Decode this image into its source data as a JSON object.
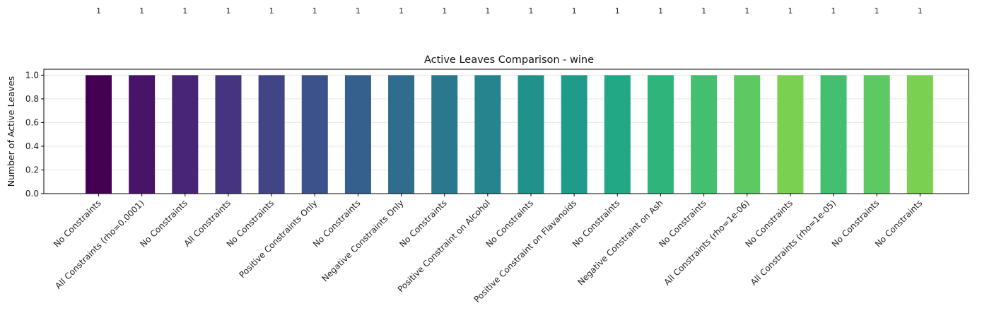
{
  "chart_data": {
    "type": "bar",
    "title": "Active Leaves Comparison - wine",
    "xlabel": "",
    "ylabel": "Number of Active Leaves",
    "ylim": [
      0,
      1.05
    ],
    "yticks": [
      "0.0",
      "0.2",
      "0.4",
      "0.6",
      "0.8",
      "1.0"
    ],
    "grid": "y",
    "categories": [
      "No Constraints",
      "All Constraints (rho=0.0001)",
      "No Constraints",
      "All Constraints",
      "No Constraints",
      "Positive Constraints Only",
      "No Constraints",
      "Negative Constraints Only",
      "No Constraints",
      "Positive Constraint on Alcohol",
      "No Constraints",
      "Positive Constraint on Flavanoids",
      "No Constraints",
      "Negative Constraint on Ash",
      "No Constraints",
      "All Constraints (rho=1e-06)",
      "No Constraints",
      "All Constraints (rho=1e-05)",
      "No Constraints",
      "No Constraints"
    ],
    "values": [
      1,
      1,
      1,
      1,
      1,
      1,
      1,
      1,
      1,
      1,
      1,
      1,
      1,
      1,
      1,
      1,
      1,
      1,
      1,
      1
    ],
    "data_labels": [
      "1",
      "1",
      "1",
      "1",
      "1",
      "1",
      "1",
      "1",
      "1",
      "1",
      "1",
      "1",
      "1",
      "1",
      "1",
      "1",
      "1",
      "1",
      "1",
      "1"
    ],
    "colors": [
      "#440154",
      "#481467",
      "#482576",
      "#463480",
      "#414487",
      "#3b528b",
      "#355f8d",
      "#2f6c8e",
      "#2a788e",
      "#25848e",
      "#21918c",
      "#1e9c89",
      "#22a884",
      "#2fb47c",
      "#44bf70",
      "#5ec962",
      "#7ad151",
      "#44bf70",
      "#5ec962",
      "#7ad151"
    ]
  }
}
